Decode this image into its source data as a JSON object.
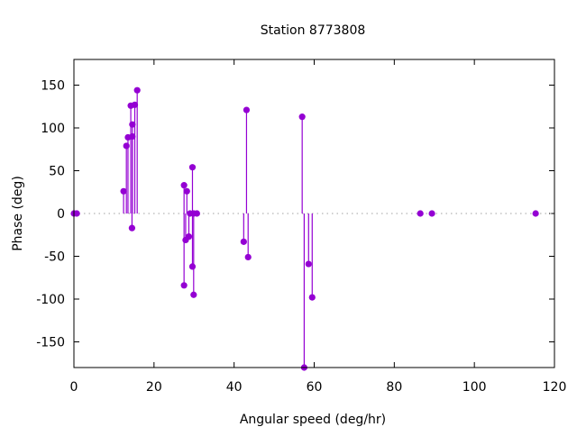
{
  "chart_data": {
    "type": "impulse-scatter",
    "title": "Station 8773808",
    "xlabel": "Angular speed (deg/hr)",
    "ylabel": "Phase (deg)",
    "xlim": [
      0,
      120
    ],
    "ylim": [
      -180,
      180
    ],
    "xticks": [
      0,
      20,
      40,
      60,
      80,
      100,
      120
    ],
    "yticks": [
      -150,
      -100,
      -50,
      0,
      50,
      100,
      150
    ],
    "zero_line": "dotted gray",
    "grid": false,
    "color": "#9400d3",
    "points": [
      {
        "x": 0.0,
        "y": 0
      },
      {
        "x": 0.7,
        "y": 0
      },
      {
        "x": 12.4,
        "y": 26
      },
      {
        "x": 13.1,
        "y": 79
      },
      {
        "x": 13.5,
        "y": 89
      },
      {
        "x": 14.2,
        "y": 126
      },
      {
        "x": 14.6,
        "y": 104
      },
      {
        "x": 14.6,
        "y": 90
      },
      {
        "x": 14.5,
        "y": -17
      },
      {
        "x": 15.2,
        "y": 127
      },
      {
        "x": 15.8,
        "y": 144
      },
      {
        "x": 27.5,
        "y": 33
      },
      {
        "x": 27.5,
        "y": -84
      },
      {
        "x": 27.9,
        "y": -31
      },
      {
        "x": 28.2,
        "y": 26
      },
      {
        "x": 28.7,
        "y": -27
      },
      {
        "x": 29.0,
        "y": 0
      },
      {
        "x": 29.6,
        "y": 54
      },
      {
        "x": 29.6,
        "y": -62
      },
      {
        "x": 29.9,
        "y": -95
      },
      {
        "x": 29.9,
        "y": 0
      },
      {
        "x": 30.7,
        "y": 0
      },
      {
        "x": 42.4,
        "y": -33
      },
      {
        "x": 43.1,
        "y": 121
      },
      {
        "x": 43.5,
        "y": -51
      },
      {
        "x": 57.0,
        "y": 113
      },
      {
        "x": 57.5,
        "y": -180
      },
      {
        "x": 58.6,
        "y": -59
      },
      {
        "x": 59.5,
        "y": -98
      },
      {
        "x": 86.5,
        "y": 0
      },
      {
        "x": 89.4,
        "y": 0
      },
      {
        "x": 115.3,
        "y": 0
      }
    ]
  }
}
